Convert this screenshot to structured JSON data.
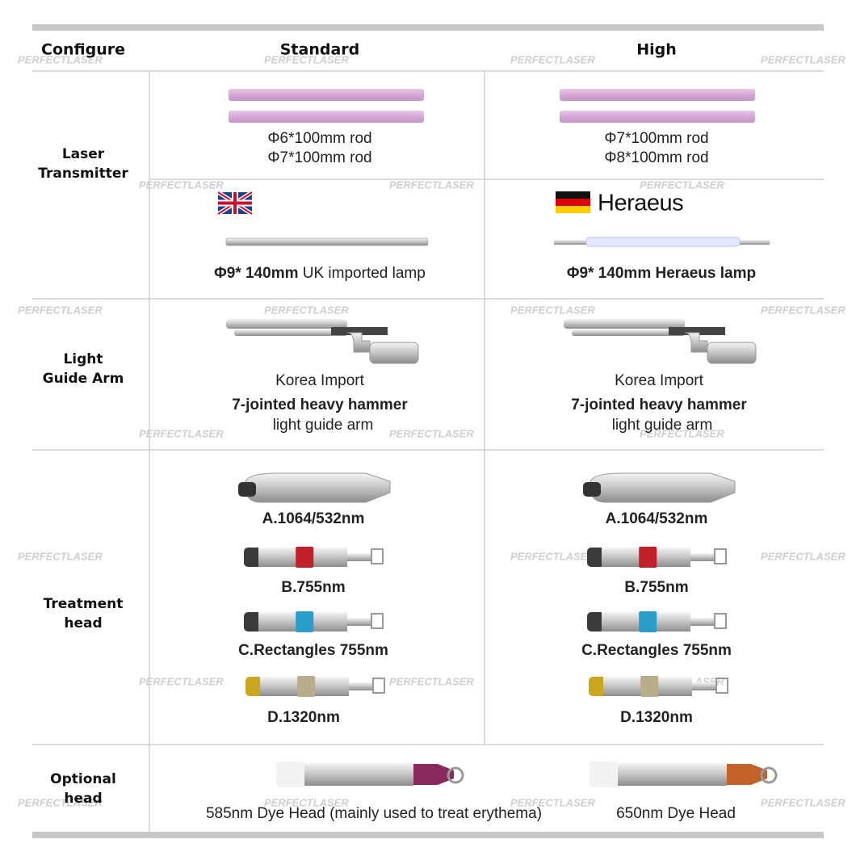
{
  "watermark": "PERFECTLASER",
  "table": {
    "header": [
      "Configure",
      "Standard",
      "High"
    ],
    "rows": [
      {
        "label": [
          "Laser",
          "Transmitter"
        ],
        "rods": {
          "standard": [
            "Φ6*100mm rod",
            "Φ7*100mm rod"
          ],
          "high": [
            "Φ7*100mm rod",
            "Φ8*100mm rod"
          ]
        },
        "brand": "Heraeus",
        "lamp": {
          "standard": [
            "Φ9* 140mm",
            " UK imported lamp"
          ],
          "high": "Φ9* 140mm Heraeus lamp"
        }
      },
      {
        "label": [
          "Light",
          "Guide Arm"
        ],
        "standard": [
          "Korea Import",
          "7-jointed heavy hammer",
          "light guide arm"
        ],
        "high": [
          "Korea Import",
          "7-jointed heavy hammer",
          "light guide arm"
        ]
      },
      {
        "label": [
          "Treatment",
          "head"
        ],
        "standard": [
          "A.1064/532nm",
          "B.755nm",
          "C.Rectangles 755nm",
          "D.1320nm"
        ],
        "high": [
          "A.1064/532nm",
          "B.755nm",
          "C.Rectangles 755nm",
          "D.1320nm"
        ]
      },
      {
        "label": [
          "Optional",
          "head"
        ],
        "standard": "585nm Dye Head (mainly used to treat erythema)",
        "high": "650nm Dye Head"
      }
    ]
  }
}
